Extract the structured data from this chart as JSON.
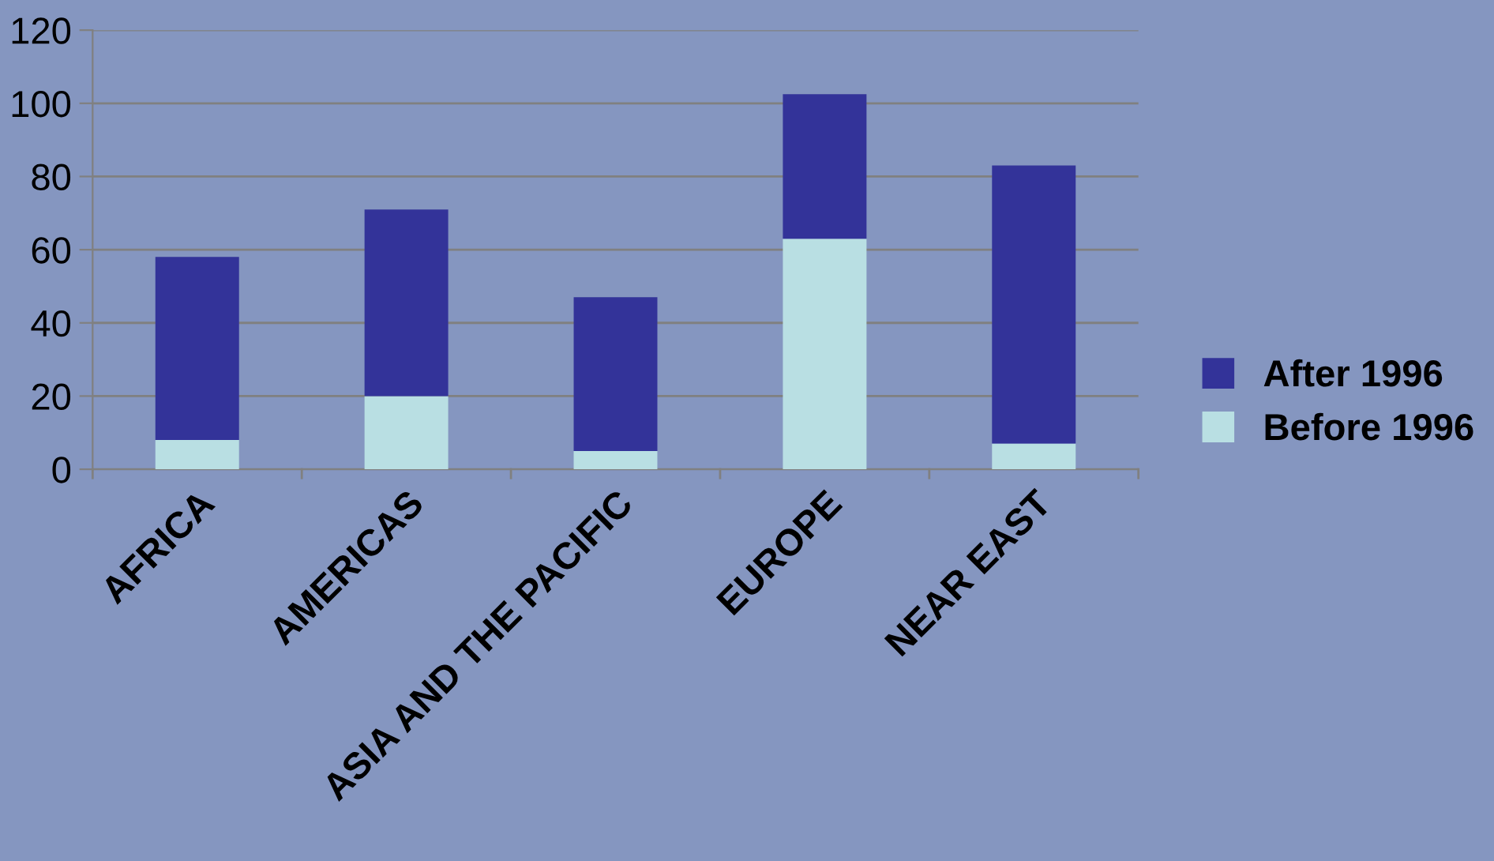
{
  "chart_data": {
    "type": "bar",
    "stacked": true,
    "categories": [
      "AFRICA",
      "AMERICAS",
      "ASIA AND THE PACIFIC",
      "EUROPE",
      "NEAR EAST"
    ],
    "series": [
      {
        "name": "Before 1996",
        "color": "#b9dfe3",
        "values": [
          8,
          20,
          5,
          63,
          7
        ]
      },
      {
        "name": "After 1996",
        "color": "#333399",
        "values": [
          50,
          51,
          42,
          39.5,
          76
        ]
      }
    ],
    "ylim": [
      0,
      120
    ],
    "yticks": [
      0,
      20,
      40,
      60,
      80,
      100,
      120
    ],
    "grid": "y",
    "legend": "right"
  }
}
